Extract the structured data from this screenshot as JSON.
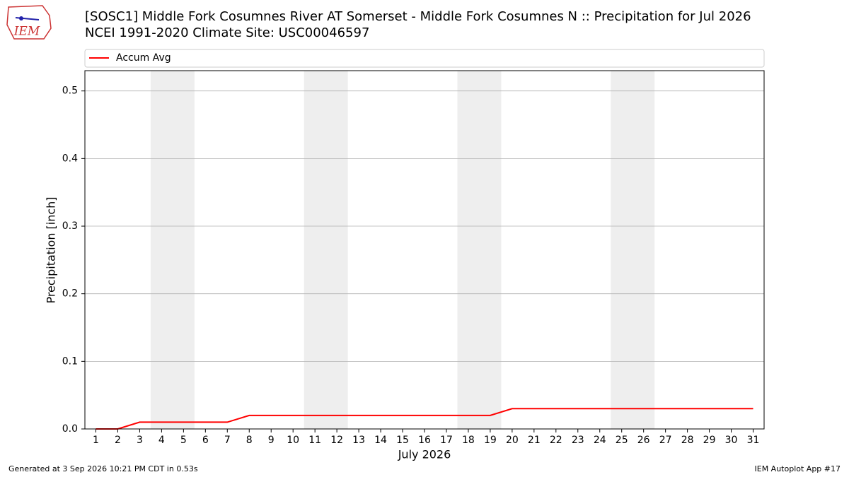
{
  "logo_text": "IEM",
  "footer_left": "Generated at 3 Sep 2026 10:21 PM CDT in 0.53s",
  "footer_right": "IEM Autoplot App #17",
  "chart_data": {
    "type": "line",
    "title": "[SOSC1] Middle Fork Cosumnes River  AT Somerset - Middle Fork Cosumnes N :: Precipitation for Jul 2026",
    "subtitle": "NCEI 1991-2020 Climate Site: USC00046597",
    "x_label": "July 2026",
    "y_label": "Precipitation [inch]",
    "x": [
      1,
      2,
      3,
      4,
      5,
      6,
      7,
      8,
      9,
      10,
      11,
      12,
      13,
      14,
      15,
      16,
      17,
      18,
      19,
      20,
      21,
      22,
      23,
      24,
      25,
      26,
      27,
      28,
      29,
      30,
      31
    ],
    "series": [
      {
        "name": "Accum Avg",
        "color": "#ff0000",
        "values": [
          0,
          0,
          0.01,
          0.01,
          0.01,
          0.01,
          0.01,
          0.02,
          0.02,
          0.02,
          0.02,
          0.02,
          0.02,
          0.02,
          0.02,
          0.02,
          0.02,
          0.02,
          0.02,
          0.03,
          0.03,
          0.03,
          0.03,
          0.03,
          0.03,
          0.03,
          0.03,
          0.03,
          0.03,
          0.03,
          0.03
        ]
      }
    ],
    "shaded_spans": [
      [
        3.5,
        5.5
      ],
      [
        10.5,
        12.5
      ],
      [
        17.5,
        19.5
      ],
      [
        24.5,
        26.5
      ]
    ],
    "shade_color": "#eeeeee",
    "xlim": [
      0.5,
      31.5
    ],
    "xticks": [
      1,
      2,
      3,
      4,
      5,
      6,
      7,
      8,
      9,
      10,
      11,
      12,
      13,
      14,
      15,
      16,
      17,
      18,
      19,
      20,
      21,
      22,
      23,
      24,
      25,
      26,
      27,
      28,
      29,
      30,
      31
    ],
    "ylim": [
      0,
      0.53
    ],
    "yticks": [
      {
        "value": 0,
        "label": "0.0"
      },
      0.1,
      0.2,
      0.3,
      0.4,
      0.5
    ],
    "grid": "y",
    "legend": "top"
  }
}
